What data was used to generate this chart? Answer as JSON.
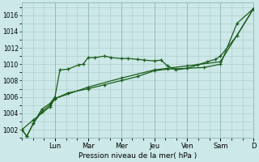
{
  "xlabel": "Pression niveau de la mer( hPa )",
  "bg_color": "#cce8e8",
  "grid_color": "#b0d0cc",
  "line_color": "#1a5c1a",
  "ylim": [
    1001.0,
    1017.5
  ],
  "yticks": [
    1002,
    1004,
    1006,
    1008,
    1010,
    1012,
    1014,
    1016
  ],
  "xlim": [
    0.0,
    7.0
  ],
  "day_locs": [
    1.0,
    2.0,
    3.0,
    4.0,
    5.0,
    6.0,
    7.0
  ],
  "day_labels": [
    "Lun",
    "Mar",
    "Mer",
    "Jeu",
    "Ven",
    "Sam",
    "D"
  ],
  "series1_x": [
    0.0,
    0.15,
    0.35,
    0.6,
    0.85,
    1.0,
    1.15,
    1.4,
    1.7,
    1.85,
    2.0,
    2.2,
    2.5,
    2.7,
    3.0,
    3.2,
    3.5,
    3.7,
    4.0,
    4.2,
    4.4,
    4.65,
    5.0,
    5.3,
    5.6,
    5.85,
    6.0,
    6.5,
    7.0
  ],
  "series1_y": [
    1002.0,
    1001.2,
    1002.8,
    1004.5,
    1005.2,
    1006.0,
    1009.3,
    1009.4,
    1009.9,
    1010.0,
    1010.8,
    1010.8,
    1011.0,
    1010.8,
    1010.7,
    1010.7,
    1010.6,
    1010.5,
    1010.4,
    1010.5,
    1009.8,
    1009.3,
    1009.5,
    1009.9,
    1010.3,
    1010.6,
    1011.0,
    1013.5,
    1016.8
  ],
  "series2_x": [
    0.0,
    0.15,
    0.35,
    0.6,
    0.85,
    1.0,
    1.4,
    2.0,
    2.5,
    3.0,
    3.5,
    4.0,
    4.4,
    5.0,
    5.5,
    6.0,
    6.5,
    7.0
  ],
  "series2_y": [
    1002.0,
    1001.2,
    1002.8,
    1004.2,
    1005.0,
    1005.8,
    1006.5,
    1007.0,
    1007.5,
    1008.0,
    1008.5,
    1009.2,
    1009.4,
    1009.5,
    1009.6,
    1010.0,
    1015.0,
    1016.8
  ],
  "series3_x": [
    0.0,
    0.35,
    0.85,
    1.0,
    2.0,
    3.0,
    4.0,
    5.0,
    6.0,
    7.0
  ],
  "series3_y": [
    1002.0,
    1003.2,
    1004.8,
    1005.8,
    1007.2,
    1008.3,
    1009.3,
    1009.8,
    1010.3,
    1016.8
  ]
}
